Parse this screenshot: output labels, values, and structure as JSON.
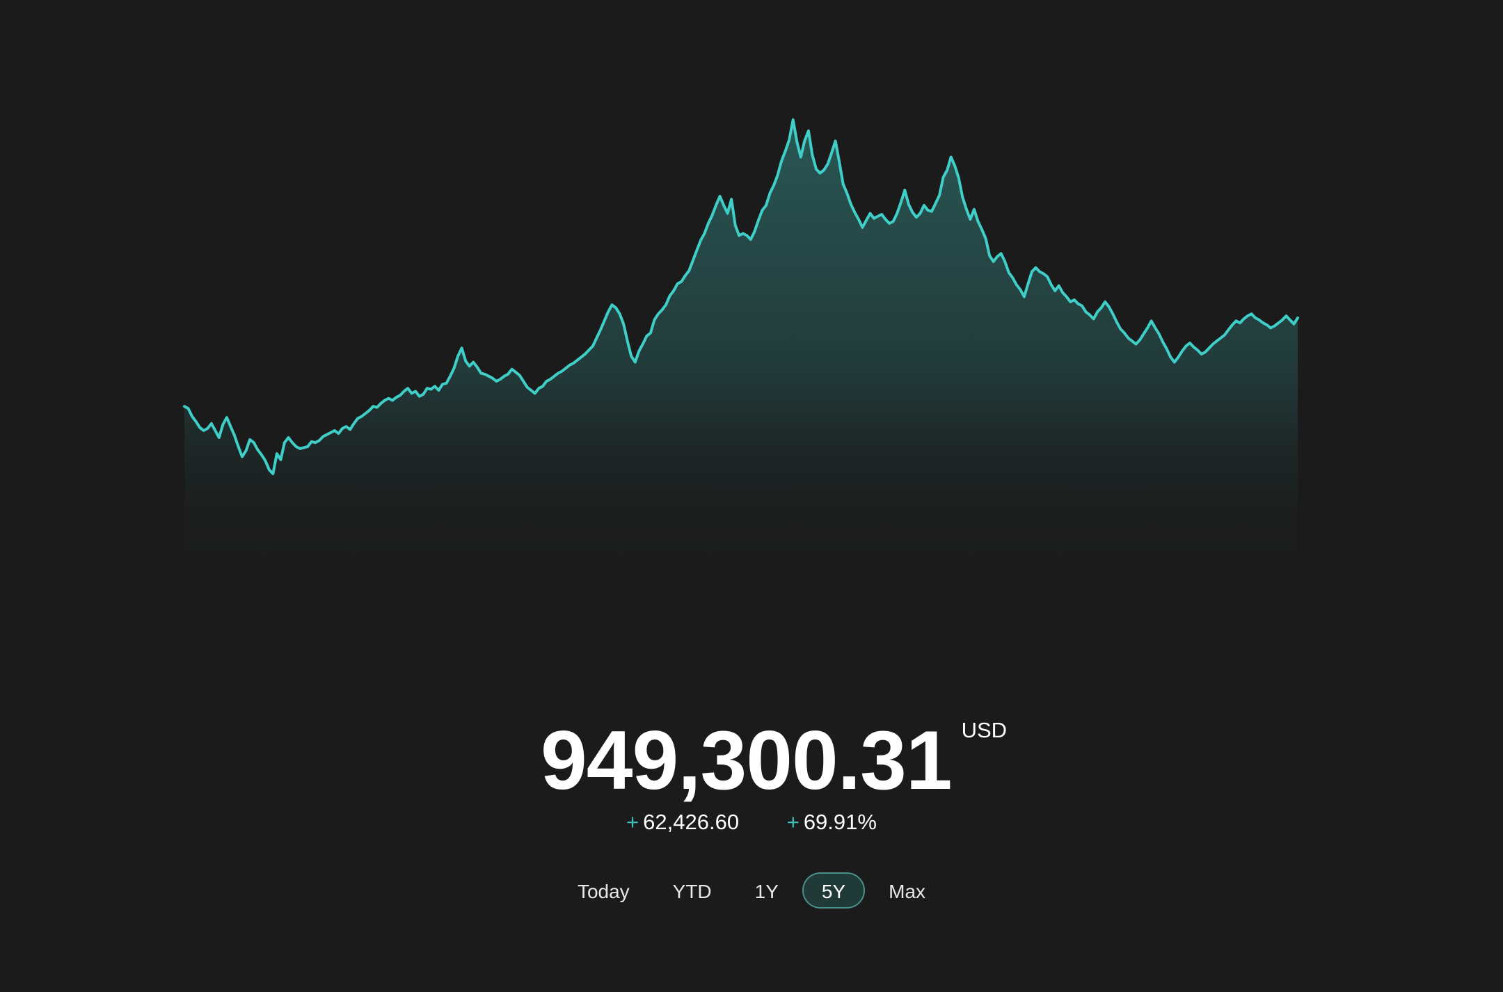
{
  "portfolio": {
    "value": "949,300.31",
    "currency": "USD",
    "change_amount_sign": "+",
    "change_amount": "62,426.60",
    "change_percent_sign": "+",
    "change_percent": "69.91%"
  },
  "ranges": [
    {
      "label": "Today",
      "active": false
    },
    {
      "label": "YTD",
      "active": false
    },
    {
      "label": "1Y",
      "active": false
    },
    {
      "label": "5Y",
      "active": true
    },
    {
      "label": "Max",
      "active": false
    }
  ],
  "colors": {
    "background": "#1b1b1b",
    "line": "#3fcfc8",
    "accent": "#3fbfb8",
    "active_range_bg": "#203a38"
  },
  "chart_data": {
    "type": "area",
    "description_units": "USD",
    "ylim": [
      40,
      95
    ],
    "grid": false,
    "values": [
      66,
      65.8,
      65,
      64.5,
      63.9,
      63.6,
      63.8,
      64.3,
      63.6,
      62.9,
      64.2,
      64.9,
      64,
      63.1,
      62,
      61,
      61.6,
      62.7,
      62.4,
      61.7,
      61.2,
      60.6,
      59.7,
      59.3,
      61.3,
      60.7,
      62.4,
      62.9,
      62.4,
      62,
      61.8,
      61.9,
      62,
      62.5,
      62.4,
      62.6,
      63,
      63.2,
      63.4,
      63.6,
      63.3,
      63.8,
      64,
      63.7,
      64.3,
      64.8,
      65,
      65.3,
      65.6,
      66,
      65.9,
      66.3,
      66.6,
      66.8,
      66.6,
      66.9,
      67.1,
      67.5,
      67.8,
      67.3,
      67.5,
      67,
      67.2,
      67.8,
      67.7,
      68,
      67.6,
      68.2,
      68.3,
      69,
      69.8,
      71,
      71.8,
      70.5,
      70,
      70.4,
      69.9,
      69.3,
      69.2,
      69,
      68.8,
      68.5,
      68.7,
      69,
      69.2,
      69.7,
      69.4,
      69.1,
      68.5,
      67.9,
      67.6,
      67.3,
      67.8,
      68,
      68.5,
      68.7,
      69,
      69.3,
      69.5,
      69.8,
      70.1,
      70.3,
      70.6,
      70.9,
      71.2,
      71.6,
      72,
      72.8,
      73.6,
      74.5,
      75.4,
      76.1,
      75.8,
      75.2,
      74.2,
      72.5,
      71,
      70.4,
      71.5,
      72.2,
      73,
      73.3,
      74.6,
      75.2,
      75.6,
      76.1,
      77,
      77.5,
      78.2,
      78.4,
      79,
      79.5,
      80.5,
      81.5,
      82.5,
      83.2,
      84.2,
      85,
      86,
      86.9,
      86,
      85.2,
      86.6,
      84,
      83,
      83.2,
      83,
      82.6,
      83.4,
      84.5,
      85.5,
      86,
      87.2,
      88,
      89,
      90.4,
      91.4,
      92.5,
      94.5,
      92.3,
      90.8,
      92.4,
      93.4,
      91,
      89.6,
      89.2,
      89.5,
      90.1,
      91.2,
      92.4,
      90.3,
      88.1,
      87.2,
      86.1,
      85.3,
      84.6,
      83.8,
      84.5,
      85.2,
      84.7,
      84.9,
      85.1,
      84.6,
      84.2,
      84.4,
      85.2,
      86.3,
      87.5,
      86.1,
      85.3,
      84.8,
      85.2,
      86,
      85.5,
      85.4,
      86.2,
      87,
      88.8,
      89.5,
      90.8,
      89.9,
      88.7,
      86.8,
      85.6,
      84.6,
      85.6,
      84.4,
      83.6,
      82.7,
      81,
      80.4,
      80.9,
      81.2,
      80.4,
      79.3,
      78.8,
      78.1,
      77.6,
      76.9,
      78.2,
      79.4,
      79.8,
      79.4,
      79.2,
      78.9,
      78.1,
      77.5,
      78,
      77.3,
      76.9,
      76.4,
      76.6,
      76.2,
      76,
      75.4,
      75.1,
      74.7,
      75.4,
      75.8,
      76.4,
      75.9,
      75.2,
      74.4,
      73.7,
      73.3,
      72.8,
      72.5,
      72.2,
      72.6,
      73.2,
      73.8,
      74.5,
      73.8,
      73.2,
      72.4,
      71.7,
      70.9,
      70.4,
      70.9,
      71.5,
      72,
      72.3,
      71.9,
      71.6,
      71.2,
      71.4,
      71.8,
      72.2,
      72.5,
      72.8,
      73.1,
      73.6,
      74.1,
      74.5,
      74.3,
      74.7,
      75,
      75.2,
      74.8,
      74.6,
      74.3,
      74.1,
      73.8,
      74,
      74.3,
      74.6,
      75,
      74.6,
      74.2,
      74.8
    ]
  }
}
